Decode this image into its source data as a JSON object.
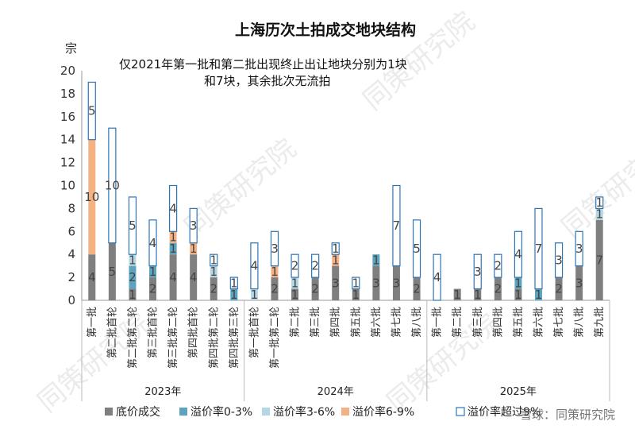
{
  "title": "上海历次土拍成交地块结构",
  "ylabel": "宗",
  "note": [
    "仅2021年第一批和第二批出现终止出让地块分别为1块",
    "和7块，其余批次无流拍"
  ],
  "watermark": "同策研究院",
  "source": "雪球：同策研究院",
  "chart_data": {
    "type": "bar",
    "stacked": true,
    "ylim": [
      0,
      20
    ],
    "yticks": [
      0,
      2,
      4,
      6,
      8,
      10,
      12,
      14,
      16,
      18,
      20
    ],
    "groups": [
      {
        "label": "2023年",
        "count": 8
      },
      {
        "label": "2024年",
        "count": 9
      },
      {
        "label": "2025年",
        "count": 9
      }
    ],
    "categories": [
      "第一批",
      "第二批首轮",
      "第二批第二轮",
      "第三批首轮",
      "第三批第二轮",
      "第四批首轮",
      "第四批第二轮",
      "第四批第三轮",
      "第一批首轮",
      "第一批第二轮",
      "第二批",
      "第三批",
      "第四批",
      "第五批",
      "第六批",
      "第七批",
      "第八批",
      "第一批",
      "第二批",
      "第三批",
      "第四批",
      "第五批",
      "第六批",
      "第七批",
      "第八批",
      "第九批"
    ],
    "series": [
      {
        "name": "底价成交",
        "color": "#7f7f7f",
        "fill": true,
        "values": [
          4,
          5,
          1,
          2,
          4,
          4,
          2,
          0,
          0,
          2,
          1,
          2,
          3,
          1,
          3,
          3,
          2,
          0,
          1,
          1,
          2,
          1,
          0,
          2,
          3,
          7
        ]
      },
      {
        "name": "溢价率0-3%",
        "color": "#5ba3bf",
        "fill": true,
        "values": [
          0,
          0,
          2,
          1,
          1,
          0,
          0,
          1,
          0,
          0,
          0,
          0,
          0,
          0,
          1,
          0,
          0,
          0,
          0,
          0,
          0,
          1,
          1,
          0,
          0,
          0
        ]
      },
      {
        "name": "溢价率3-6%",
        "color": "#b4d7e3",
        "fill": true,
        "values": [
          0,
          0,
          1,
          0,
          0,
          0,
          1,
          0,
          1,
          0,
          1,
          0,
          0,
          0,
          0,
          0,
          0,
          0,
          0,
          0,
          0,
          0,
          0,
          0,
          0,
          1
        ]
      },
      {
        "name": "溢价率6-9%",
        "color": "#f4b183",
        "fill": true,
        "values": [
          10,
          0,
          0,
          0,
          1,
          1,
          0,
          0,
          0,
          1,
          0,
          0,
          1,
          0,
          0,
          0,
          0,
          0,
          0,
          0,
          0,
          0,
          0,
          0,
          0,
          0
        ]
      },
      {
        "name": "溢价率超过9%",
        "color": "#2e75b6",
        "fill": false,
        "values": [
          5,
          10,
          5,
          4,
          4,
          3,
          1,
          1,
          4,
          3,
          2,
          2,
          1,
          1,
          0,
          7,
          5,
          4,
          0,
          3,
          2,
          4,
          7,
          3,
          3,
          1
        ]
      }
    ]
  }
}
